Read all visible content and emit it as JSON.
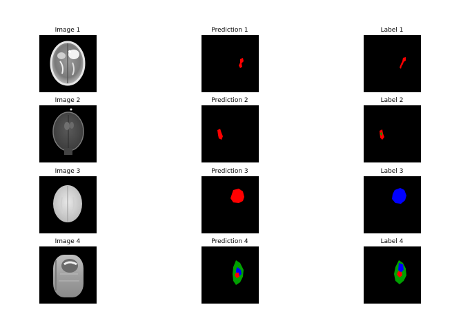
{
  "colors": {
    "background": "#ffffff",
    "panel": "#000000",
    "red": "#ff0000",
    "green": "#00a000",
    "blue": "#0000ff"
  },
  "rows": [
    {
      "image_title": "Image 1",
      "prediction_title": "Prediction 1",
      "label_title": "Label 1"
    },
    {
      "image_title": "Image 2",
      "prediction_title": "Prediction 2",
      "label_title": "Label 2"
    },
    {
      "image_title": "Image 3",
      "prediction_title": "Prediction 3",
      "label_title": "Label 3"
    },
    {
      "image_title": "Image 4",
      "prediction_title": "Prediction 4",
      "label_title": "Label 4"
    }
  ]
}
